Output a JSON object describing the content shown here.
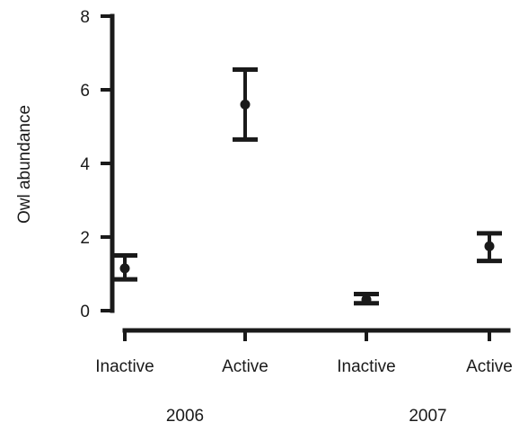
{
  "chart_data": {
    "type": "scatter",
    "title": "",
    "xlabel": "",
    "ylabel": "Owl abundance",
    "ylim": [
      0,
      8
    ],
    "yticks": [
      0,
      2,
      4,
      6,
      8
    ],
    "grid": false,
    "categories": [
      "Inactive",
      "Active",
      "Inactive",
      "Active"
    ],
    "groups": [
      {
        "label": "2006",
        "categories": [
          0,
          1
        ]
      },
      {
        "label": "2007",
        "categories": [
          2,
          3
        ]
      }
    ],
    "points": [
      {
        "category": "Inactive",
        "group": "2006",
        "mean": 1.15,
        "lower": 0.85,
        "upper": 1.5
      },
      {
        "category": "Active",
        "group": "2006",
        "mean": 5.6,
        "lower": 4.65,
        "upper": 6.55
      },
      {
        "category": "Inactive",
        "group": "2007",
        "mean": 0.3,
        "lower": 0.2,
        "upper": 0.45
      },
      {
        "category": "Active",
        "group": "2007",
        "mean": 1.75,
        "lower": 1.35,
        "upper": 2.1
      }
    ],
    "colors": {
      "ink": "#1a1a1a"
    }
  }
}
